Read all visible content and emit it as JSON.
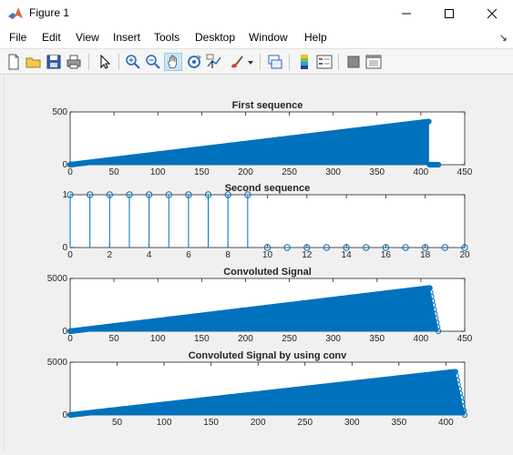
{
  "window": {
    "title": "Figure 1"
  },
  "menu": {
    "items": [
      "File",
      "Edit",
      "View",
      "Insert",
      "Tools",
      "Desktop",
      "Window",
      "Help"
    ]
  },
  "toolbar": {
    "buttons": [
      {
        "name": "new-figure-icon",
        "selected": false
      },
      {
        "name": "open-file-icon",
        "selected": false
      },
      {
        "name": "save-icon",
        "selected": false
      },
      {
        "name": "print-icon",
        "selected": false
      },
      {
        "name": "edit-plot-arrow-icon",
        "selected": false
      },
      {
        "name": "zoom-in-icon",
        "selected": false
      },
      {
        "name": "zoom-out-icon",
        "selected": false
      },
      {
        "name": "pan-hand-icon",
        "selected": true
      },
      {
        "name": "rotate-3d-icon",
        "selected": false
      },
      {
        "name": "data-cursor-icon",
        "selected": false
      },
      {
        "name": "brush-icon",
        "selected": false
      },
      {
        "name": "link-plot-icon",
        "selected": false
      },
      {
        "name": "insert-colorbar-icon",
        "selected": false
      },
      {
        "name": "insert-legend-icon",
        "selected": false
      },
      {
        "name": "hide-plot-tools-icon",
        "selected": false
      },
      {
        "name": "show-plot-tools-icon",
        "selected": false
      }
    ]
  },
  "colors": {
    "series": "#0072bd",
    "axes_bg": "#ffffff",
    "axes_edge": "#262626",
    "figure_bg": "#f0f0f0"
  },
  "chart_data": [
    {
      "type": "stem",
      "title": "First sequence",
      "xlim": [
        0,
        450
      ],
      "ylim": [
        0,
        500
      ],
      "xticks": [
        0,
        50,
        100,
        150,
        200,
        250,
        300,
        350,
        400,
        450
      ],
      "yticks": [
        0,
        500
      ],
      "series": [
        {
          "x_start": 0,
          "x_end": 409,
          "y_start": 0,
          "y_end": 409
        },
        {
          "x_start": 410,
          "x_end": 420,
          "y_start": 0,
          "y_end": 0
        }
      ]
    },
    {
      "type": "stem",
      "title": "Second sequence",
      "xlim": [
        0,
        20
      ],
      "ylim": [
        0,
        1
      ],
      "xticks": [
        0,
        2,
        4,
        6,
        8,
        10,
        12,
        14,
        16,
        18,
        20
      ],
      "yticks": [
        0,
        1
      ],
      "x": [
        0,
        1,
        2,
        3,
        4,
        5,
        6,
        7,
        8,
        9,
        10,
        11,
        12,
        13,
        14,
        15,
        16,
        17,
        18,
        19,
        20
      ],
      "values": [
        1,
        1,
        1,
        1,
        1,
        1,
        1,
        1,
        1,
        1,
        0,
        0,
        0,
        0,
        0,
        0,
        0,
        0,
        0,
        0,
        0
      ]
    },
    {
      "type": "stem",
      "title": "Convoluted Signal",
      "xlim": [
        0,
        450
      ],
      "ylim": [
        0,
        5000
      ],
      "xticks": [
        0,
        50,
        100,
        150,
        200,
        250,
        300,
        350,
        400,
        450
      ],
      "yticks": [
        0,
        5000
      ],
      "series": [
        {
          "x_start": 0,
          "x_end": 410,
          "y_start": 0,
          "y_end": 4100
        },
        {
          "x_start": 410,
          "x_end": 420,
          "y_start": 4100,
          "y_end": 0
        }
      ]
    },
    {
      "type": "stem",
      "title": "Convoluted Signal by using conv",
      "xlim": [
        0,
        420
      ],
      "ylim": [
        0,
        5000
      ],
      "xticks": [
        50,
        100,
        150,
        200,
        250,
        300,
        350,
        400
      ],
      "yticks": [
        0,
        5000
      ],
      "series": [
        {
          "x_start": 0,
          "x_end": 410,
          "y_start": 0,
          "y_end": 4100
        },
        {
          "x_start": 410,
          "x_end": 420,
          "y_start": 4100,
          "y_end": 0
        }
      ]
    }
  ]
}
